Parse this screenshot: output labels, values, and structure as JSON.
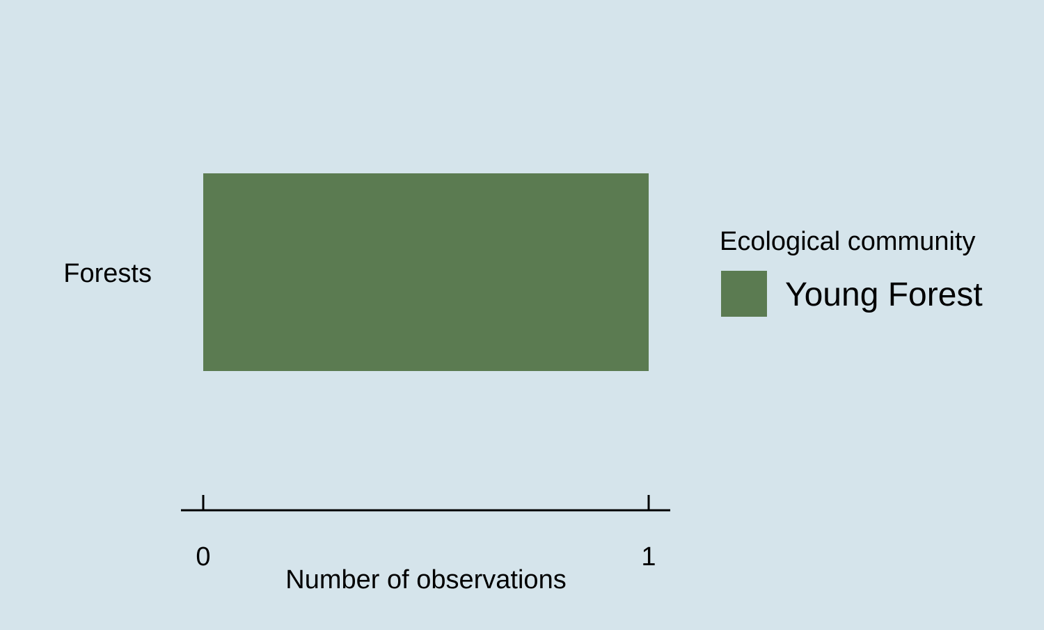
{
  "chart_data": {
    "type": "bar",
    "orientation": "horizontal",
    "categories": [
      "Forests"
    ],
    "series": [
      {
        "name": "Young Forest",
        "values": [
          1
        ],
        "color": "#5b7b51"
      }
    ],
    "xlabel": "Number of observations",
    "ylabel": "",
    "xlim": [
      0,
      1
    ],
    "x_ticks": [
      0,
      1
    ],
    "x_tick_labels": [
      "0",
      "1"
    ],
    "grid": false,
    "legend": {
      "title": "Ecological community",
      "placement": "right"
    },
    "background_color": "#d5e4eb"
  }
}
